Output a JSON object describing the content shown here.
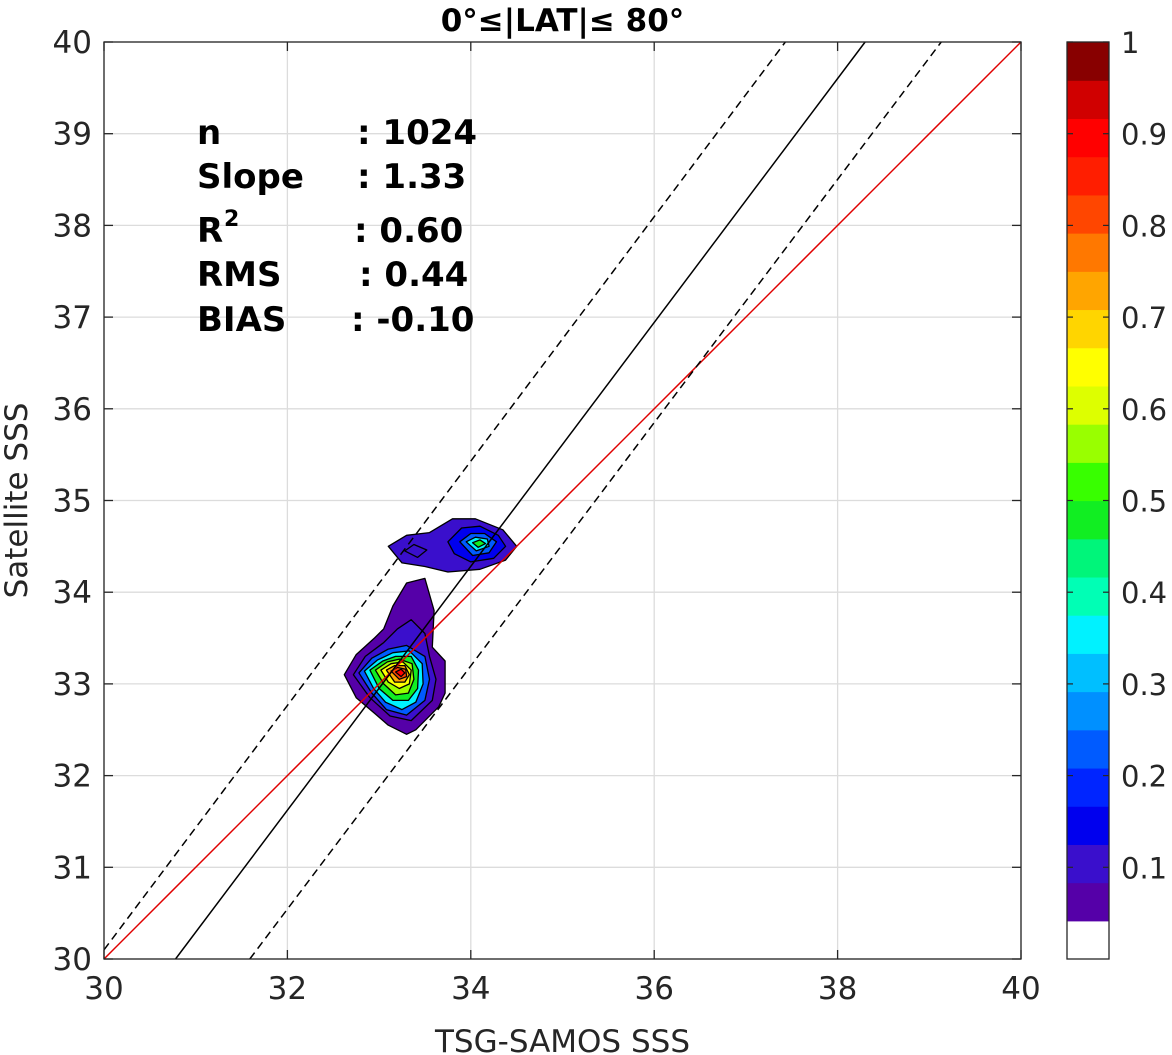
{
  "chart_data": {
    "type": "contour",
    "title": "0°≤|LAT|≤ 80°",
    "xlabel": "TSG-SAMOS SSS",
    "ylabel": "Satellite SSS",
    "xlim": [
      30,
      40
    ],
    "ylim": [
      30,
      40
    ],
    "xticks": [
      "30",
      "32",
      "34",
      "36",
      "38",
      "40"
    ],
    "yticks": [
      "30",
      "31",
      "32",
      "33",
      "34",
      "35",
      "36",
      "37",
      "38",
      "39",
      "40"
    ],
    "grid": true,
    "stats": [
      {
        "label": "n",
        "value": ": 1024"
      },
      {
        "label": "Slope",
        "value": ": 1.33"
      },
      {
        "label": "R",
        "sup": "2",
        "value": ": 0.60"
      },
      {
        "label": "RMS",
        "value": ": 0.44"
      },
      {
        "label": "BIAS",
        "value": ": -0.10"
      }
    ],
    "lines": [
      {
        "role": "one-to-one",
        "color": "#e00000",
        "style": "solid",
        "points": [
          [
            30,
            30
          ],
          [
            40,
            40
          ]
        ]
      },
      {
        "role": "fit",
        "color": "#000000",
        "style": "solid",
        "points": [
          [
            30.78,
            30
          ],
          [
            38.3,
            40
          ]
        ]
      },
      {
        "role": "upper-bound",
        "color": "#000000",
        "style": "dashed",
        "points": [
          [
            30,
            30.1
          ],
          [
            37.43,
            40
          ]
        ]
      },
      {
        "role": "lower-bound",
        "color": "#000000",
        "style": "dashed",
        "points": [
          [
            31.59,
            30
          ],
          [
            39.13,
            40
          ]
        ]
      }
    ],
    "density_blobs": [
      {
        "cx": 33.28,
        "cy": 33.12,
        "levels": [
          [
            [
              32.62,
              33.1
            ],
            [
              32.75,
              33.32
            ],
            [
              32.95,
              33.5
            ],
            [
              33.05,
              33.6
            ],
            [
              33.15,
              33.85
            ],
            [
              33.3,
              34.1
            ],
            [
              33.5,
              34.15
            ],
            [
              33.6,
              33.8
            ],
            [
              33.58,
              33.4
            ],
            [
              33.72,
              33.25
            ],
            [
              33.72,
              32.9
            ],
            [
              33.65,
              32.75
            ],
            [
              33.4,
              32.5
            ],
            [
              33.3,
              32.45
            ],
            [
              33.1,
              32.55
            ],
            [
              32.95,
              32.68
            ],
            [
              32.75,
              32.85
            ]
          ],
          [
            [
              32.72,
              33.1
            ],
            [
              32.85,
              33.3
            ],
            [
              33.05,
              33.45
            ],
            [
              33.2,
              33.6
            ],
            [
              33.35,
              33.7
            ],
            [
              33.5,
              33.55
            ],
            [
              33.55,
              33.3
            ],
            [
              33.62,
              33.05
            ],
            [
              33.58,
              32.82
            ],
            [
              33.35,
              32.6
            ],
            [
              33.12,
              32.65
            ],
            [
              32.9,
              32.85
            ]
          ],
          [
            [
              32.78,
              33.12
            ],
            [
              32.92,
              33.28
            ],
            [
              33.1,
              33.38
            ],
            [
              33.3,
              33.42
            ],
            [
              33.5,
              33.3
            ],
            [
              33.55,
              33.05
            ],
            [
              33.5,
              32.82
            ],
            [
              33.3,
              32.66
            ],
            [
              33.08,
              32.72
            ],
            [
              32.92,
              32.9
            ]
          ],
          [
            [
              32.84,
              33.14
            ],
            [
              32.98,
              33.26
            ],
            [
              33.15,
              33.34
            ],
            [
              33.33,
              33.36
            ],
            [
              33.47,
              33.22
            ],
            [
              33.48,
              33.0
            ],
            [
              33.4,
              32.8
            ],
            [
              33.25,
              32.72
            ],
            [
              33.07,
              32.8
            ],
            [
              32.94,
              32.95
            ]
          ],
          [
            [
              32.9,
              33.15
            ],
            [
              33.04,
              33.25
            ],
            [
              33.18,
              33.3
            ],
            [
              33.35,
              33.3
            ],
            [
              33.43,
              33.15
            ],
            [
              33.42,
              32.95
            ],
            [
              33.32,
              32.82
            ],
            [
              33.15,
              32.82
            ],
            [
              33.0,
              32.95
            ]
          ],
          [
            [
              32.96,
              33.15
            ],
            [
              33.09,
              33.24
            ],
            [
              33.22,
              33.27
            ],
            [
              33.36,
              33.22
            ],
            [
              33.38,
              33.05
            ],
            [
              33.32,
              32.9
            ],
            [
              33.18,
              32.88
            ],
            [
              33.05,
              33.0
            ]
          ],
          [
            [
              33.02,
              33.15
            ],
            [
              33.13,
              33.22
            ],
            [
              33.26,
              33.24
            ],
            [
              33.35,
              33.15
            ],
            [
              33.33,
              33.0
            ],
            [
              33.22,
              32.95
            ],
            [
              33.1,
              33.02
            ]
          ],
          [
            [
              33.08,
              33.15
            ],
            [
              33.17,
              33.2
            ],
            [
              33.28,
              33.2
            ],
            [
              33.33,
              33.1
            ],
            [
              33.28,
              33.02
            ],
            [
              33.17,
              33.02
            ]
          ],
          [
            [
              33.13,
              33.14
            ],
            [
              33.2,
              33.18
            ],
            [
              33.29,
              33.16
            ],
            [
              33.3,
              33.08
            ],
            [
              33.22,
              33.05
            ]
          ],
          [
            [
              33.18,
              33.13
            ],
            [
              33.24,
              33.16
            ],
            [
              33.28,
              33.12
            ],
            [
              33.24,
              33.08
            ]
          ]
        ]
      },
      {
        "cx": 34.1,
        "cy": 34.52,
        "levels": [
          [
            [
              33.1,
              34.5
            ],
            [
              33.3,
              34.62
            ],
            [
              33.55,
              34.65
            ],
            [
              33.8,
              34.8
            ],
            [
              34.05,
              34.8
            ],
            [
              34.35,
              34.68
            ],
            [
              34.5,
              34.5
            ],
            [
              34.38,
              34.35
            ],
            [
              34.1,
              34.25
            ],
            [
              33.75,
              34.22
            ],
            [
              33.5,
              34.28
            ],
            [
              33.25,
              34.32
            ]
          ],
          [
            [
              33.75,
              34.55
            ],
            [
              33.9,
              34.7
            ],
            [
              34.1,
              34.72
            ],
            [
              34.3,
              34.62
            ],
            [
              34.38,
              34.5
            ],
            [
              34.25,
              34.37
            ],
            [
              34.0,
              34.33
            ],
            [
              33.82,
              34.42
            ]
          ],
          [
            [
              33.28,
              34.45
            ],
            [
              33.38,
              34.52
            ],
            [
              33.52,
              34.46
            ],
            [
              33.42,
              34.38
            ]
          ],
          [
            [
              33.88,
              34.55
            ],
            [
              34.0,
              34.64
            ],
            [
              34.15,
              34.64
            ],
            [
              34.28,
              34.55
            ],
            [
              34.2,
              34.43
            ],
            [
              34.02,
              34.4
            ]
          ],
          [
            [
              33.95,
              34.55
            ],
            [
              34.05,
              34.6
            ],
            [
              34.18,
              34.58
            ],
            [
              34.2,
              34.5
            ],
            [
              34.06,
              34.45
            ]
          ],
          [
            [
              34.02,
              34.54
            ],
            [
              34.1,
              34.57
            ],
            [
              34.16,
              34.53
            ],
            [
              34.08,
              34.49
            ]
          ]
        ]
      }
    ],
    "colorbar": {
      "ticks": [
        "0.1",
        "0.2",
        "0.3",
        "0.4",
        "0.5",
        "0.6",
        "0.7",
        "0.8",
        "0.9",
        "1"
      ],
      "tick_values": [
        0.1,
        0.2,
        0.3,
        0.4,
        0.5,
        0.6,
        0.7,
        0.8,
        0.9,
        1.0
      ],
      "range": [
        0,
        1
      ],
      "colors": [
        "#ffffff",
        "#5500a8",
        "#3a0fcc",
        "#0000ee",
        "#0025ff",
        "#005bff",
        "#0090ff",
        "#00bfff",
        "#00f2ff",
        "#00ffb5",
        "#00f57a",
        "#11ee22",
        "#38ff00",
        "#99ff00",
        "#ddff00",
        "#ffff00",
        "#ffd500",
        "#ffa500",
        "#ff7800",
        "#ff4600",
        "#ff1e00",
        "#ff0000",
        "#d00000",
        "#880000"
      ]
    }
  }
}
